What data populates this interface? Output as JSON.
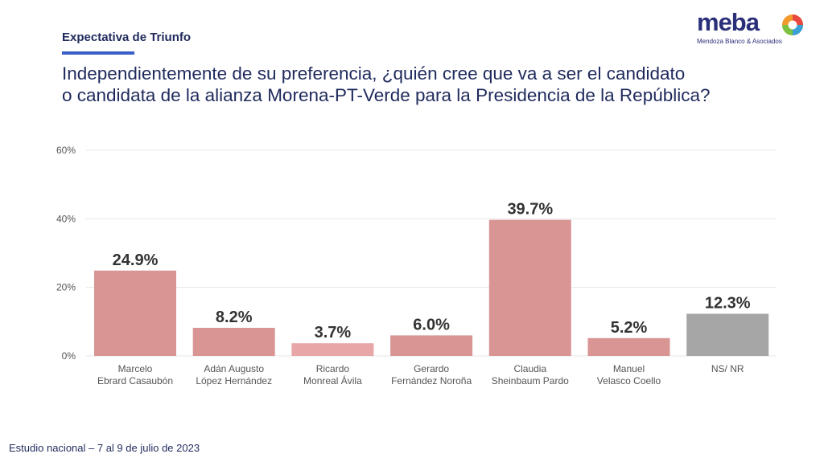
{
  "header": {
    "section_label": "Expectativa de Triunfo",
    "question_line1": "Independientemente de su preferencia, ¿quién cree que va a ser el candidato",
    "question_line2": "o candidata de la alianza Morena-PT-Verde para la Presidencia de la República?"
  },
  "logo": {
    "word": "meba",
    "tagline": "Mendoza Blanco & Asociados"
  },
  "footer": {
    "text": "Estudio nacional – 7 al 9 de julio de 2023"
  },
  "colors": {
    "bar_primary": "#d99494",
    "bar_light": "#e8a6a6",
    "bar_gray": "#a6a6a6",
    "grid": "#e6e6e6",
    "axis_text": "#555555",
    "value_text": "#333333"
  },
  "chart_data": {
    "type": "bar",
    "title": "",
    "xlabel": "",
    "ylabel": "",
    "ylim": [
      0,
      60
    ],
    "yticks": [
      0,
      20,
      40,
      60
    ],
    "ytick_labels": [
      "0%",
      "20%",
      "40%",
      "60%"
    ],
    "grid": true,
    "categories": [
      [
        "Marcelo",
        "Ebrard Casaubón"
      ],
      [
        "Adán Augusto",
        "López Hernández"
      ],
      [
        "Ricardo",
        "Monreal Ávila"
      ],
      [
        "Gerardo",
        "Fernández Noroña"
      ],
      [
        "Claudia",
        "Sheinbaum Pardo"
      ],
      [
        "Manuel",
        "Velasco Coello"
      ],
      [
        "NS/ NR"
      ]
    ],
    "values": [
      24.9,
      8.2,
      3.7,
      6.0,
      39.7,
      5.2,
      12.3
    ],
    "value_labels": [
      "24.9%",
      "8.2%",
      "3.7%",
      "6.0%",
      "39.7%",
      "5.2%",
      "12.3%"
    ],
    "bar_color_keys": [
      "bar_primary",
      "bar_primary",
      "bar_light",
      "bar_primary",
      "bar_primary",
      "bar_primary",
      "bar_gray"
    ]
  }
}
